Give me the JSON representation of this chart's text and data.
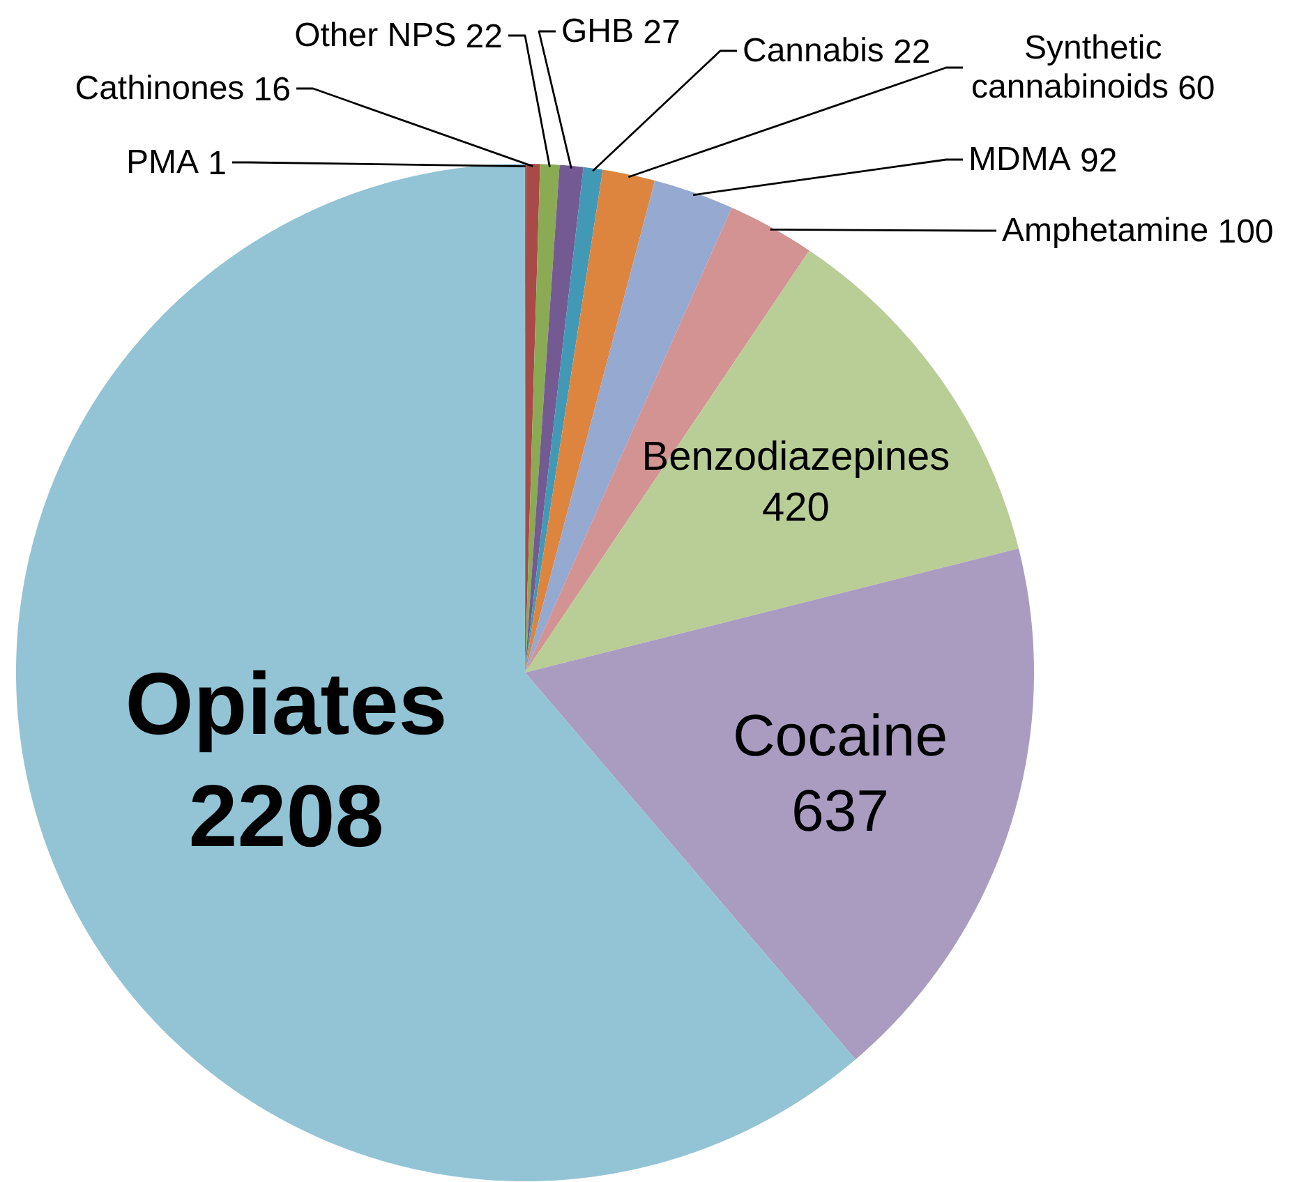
{
  "chart_data": {
    "type": "pie",
    "categories": [
      "PMA",
      "Cathinones",
      "Other NPS",
      "GHB",
      "Cannabis",
      "Synthetic cannabinoids",
      "MDMA",
      "Amphetamine",
      "Benzodiazepines",
      "Cocaine",
      "Opiates"
    ],
    "values": [
      1,
      16,
      22,
      27,
      22,
      60,
      92,
      100,
      420,
      637,
      2208
    ],
    "colors": [
      "#4a7ebb",
      "#a84a48",
      "#8baa54",
      "#735a93",
      "#4299b5",
      "#dd853e",
      "#95a9d1",
      "#d39393",
      "#b9ce96",
      "#aa9cc1",
      "#93c4d5"
    ],
    "data_labels": true
  }
}
